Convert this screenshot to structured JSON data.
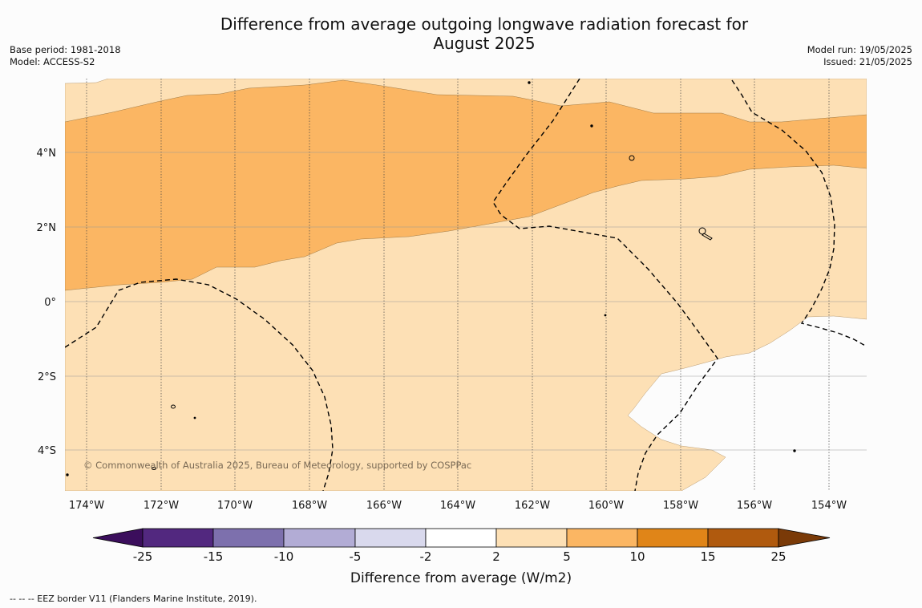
{
  "title_line1": "Difference from average outgoing longwave radiation forecast for",
  "title_line2": "August 2025",
  "meta_left": {
    "base_period": "Base period: 1981-2018",
    "model": "Model: ACCESS-S2"
  },
  "meta_right": {
    "model_run": "Model run: 19/05/2025",
    "issued": "Issued: 21/05/2025"
  },
  "map": {
    "lon_labels": [
      "174°W",
      "172°W",
      "170°W",
      "168°W",
      "166°W",
      "164°W",
      "162°W",
      "160°W",
      "158°W",
      "156°W",
      "154°W"
    ],
    "lat_labels": [
      "4°N",
      "2°N",
      "0°",
      "2°S",
      "4°S"
    ],
    "copyright": "© Commonwealth of Australia 2025, Bureau of Meteorology, supported by COSPPac",
    "colors": {
      "band_2_5": "#fde0b5",
      "band_5_10": "#fbb663",
      "band_neutral": "#ffffff"
    }
  },
  "colorbar": {
    "title": "Difference from average (W/m2)",
    "tick_labels": [
      "-25",
      "-15",
      "-10",
      "-5",
      "-2",
      "2",
      "5",
      "10",
      "15",
      "25"
    ],
    "colors": [
      "#3b0e5c",
      "#52287f",
      "#7d70ad",
      "#b2acd5",
      "#d9d9ed",
      "#ffffff",
      "#fde0b5",
      "#fbb663",
      "#e08518",
      "#b05a0e",
      "#7a3a08"
    ]
  },
  "footnote": "--  --  -- EEZ border V11 (Flanders Marine Institute, 2019)."
}
